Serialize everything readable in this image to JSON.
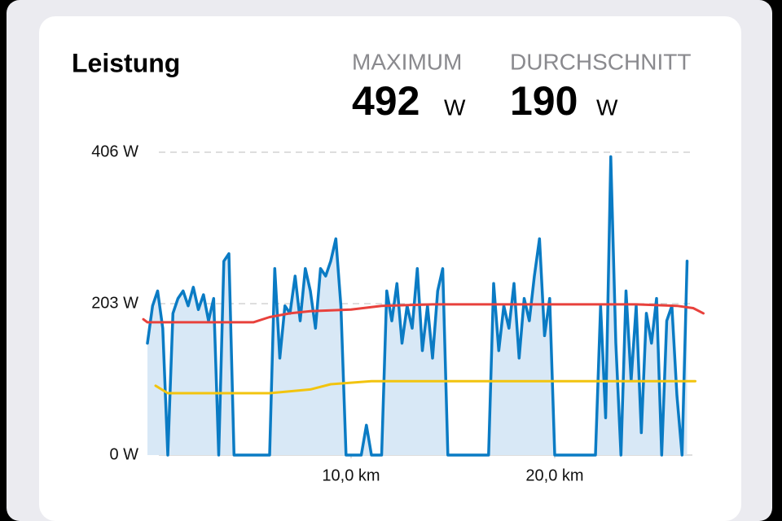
{
  "header": {
    "title": "Leistung",
    "stats": [
      {
        "label": "MAXIMUM",
        "value": 492,
        "unit": "W"
      },
      {
        "label": "DURCHSCHNITT",
        "value": 190,
        "unit": "W"
      }
    ]
  },
  "chart_data": {
    "type": "area",
    "xlim": [
      -0.2,
      27.4
    ],
    "xticks": [
      {
        "value": 10,
        "label": "10,0 km"
      },
      {
        "value": 20,
        "label": "20,0 km"
      }
    ],
    "ylim": [
      0,
      406
    ],
    "yticks": [
      {
        "value": 0,
        "label": "0 W"
      },
      {
        "value": 203,
        "label": "203 W"
      },
      {
        "value": 406,
        "label": "406 W"
      }
    ],
    "grid": true,
    "series": [
      {
        "color": "#0a7bc4",
        "fill": "#d8e8f6",
        "x": [
          0,
          0.25,
          0.5,
          0.75,
          1,
          1.25,
          1.5,
          1.75,
          2,
          2.25,
          2.5,
          2.75,
          3,
          3.25,
          3.5,
          3.75,
          4,
          4.25,
          4.5,
          4.75,
          5,
          5.25,
          5.5,
          5.75,
          6,
          6.25,
          6.5,
          6.75,
          7,
          7.25,
          7.5,
          7.75,
          8,
          8.25,
          8.5,
          8.75,
          9,
          9.25,
          9.5,
          9.75,
          10,
          10.25,
          10.5,
          10.75,
          11,
          11.25,
          11.5,
          11.75,
          12,
          12.25,
          12.5,
          12.75,
          13,
          13.25,
          13.5,
          13.75,
          14,
          14.25,
          14.5,
          14.75,
          15,
          15.25,
          15.5,
          15.75,
          16,
          16.25,
          16.5,
          16.75,
          17,
          17.25,
          17.5,
          17.75,
          18,
          18.25,
          18.5,
          18.75,
          19,
          19.25,
          19.5,
          19.75,
          20,
          20.25,
          20.5,
          20.75,
          21,
          21.25,
          21.5,
          21.75,
          22,
          22.25,
          22.5,
          22.75,
          23,
          23.25,
          23.5,
          23.75,
          24,
          24.25,
          24.5,
          24.75,
          25,
          25.25,
          25.5,
          25.75,
          26,
          26.25,
          26.5
        ],
        "values": [
          150,
          200,
          220,
          170,
          0,
          190,
          210,
          220,
          200,
          225,
          195,
          215,
          180,
          210,
          0,
          260,
          270,
          0,
          0,
          0,
          0,
          0,
          0,
          0,
          0,
          250,
          130,
          200,
          190,
          240,
          180,
          250,
          220,
          170,
          250,
          240,
          260,
          290,
          200,
          0,
          0,
          0,
          0,
          40,
          0,
          0,
          0,
          220,
          180,
          230,
          150,
          200,
          170,
          250,
          140,
          200,
          130,
          220,
          250,
          0,
          0,
          0,
          0,
          0,
          0,
          0,
          0,
          0,
          230,
          140,
          200,
          170,
          230,
          130,
          210,
          180,
          240,
          290,
          160,
          210,
          0,
          0,
          0,
          0,
          0,
          0,
          0,
          0,
          0,
          200,
          50,
          400,
          150,
          0,
          220,
          100,
          200,
          30,
          190,
          150,
          210,
          0,
          180,
          200,
          80,
          0,
          260
        ]
      },
      {
        "color": "#e8413c",
        "x": [
          -0.2,
          0,
          1,
          3,
          5,
          5.2,
          6,
          7,
          8,
          10,
          11.5,
          14,
          18,
          22,
          24,
          26,
          26.8,
          27.3
        ],
        "values": [
          182,
          178,
          178,
          178,
          178,
          178,
          185,
          190,
          193,
          195,
          200,
          202,
          202,
          202,
          202,
          200,
          197,
          190
        ]
      },
      {
        "color": "#f2c40f",
        "x": [
          0.4,
          1,
          3,
          6,
          8,
          9,
          10,
          11,
          26.9
        ],
        "values": [
          93,
          83,
          83,
          83,
          88,
          95,
          97,
          99,
          99
        ]
      }
    ]
  }
}
